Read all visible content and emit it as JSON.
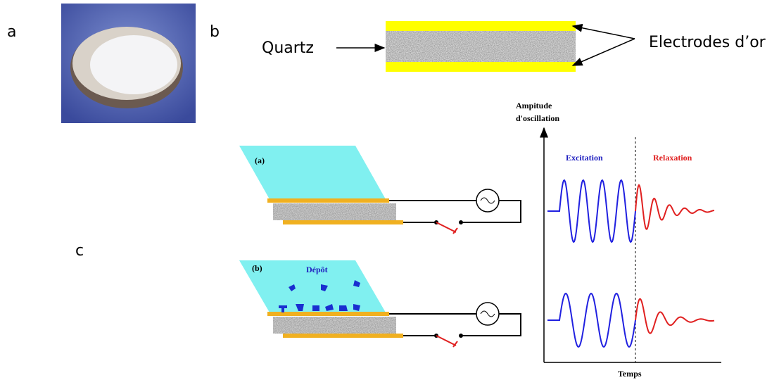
{
  "panels": {
    "a": "a",
    "b": "b",
    "c": "c"
  },
  "part_b": {
    "quartz_label": "Quartz",
    "electrodes_label": "Electrodes d’or"
  },
  "part_c": {
    "setup_a_label": "(a)",
    "setup_b_label": "(b)",
    "deposit_label": "Dépôt",
    "y_axis_label": [
      "Ampitude",
      "d'oscillation"
    ],
    "excitation_label": "Excitation",
    "relaxation_label": "Relaxation",
    "x_axis_label": "Temps"
  }
}
